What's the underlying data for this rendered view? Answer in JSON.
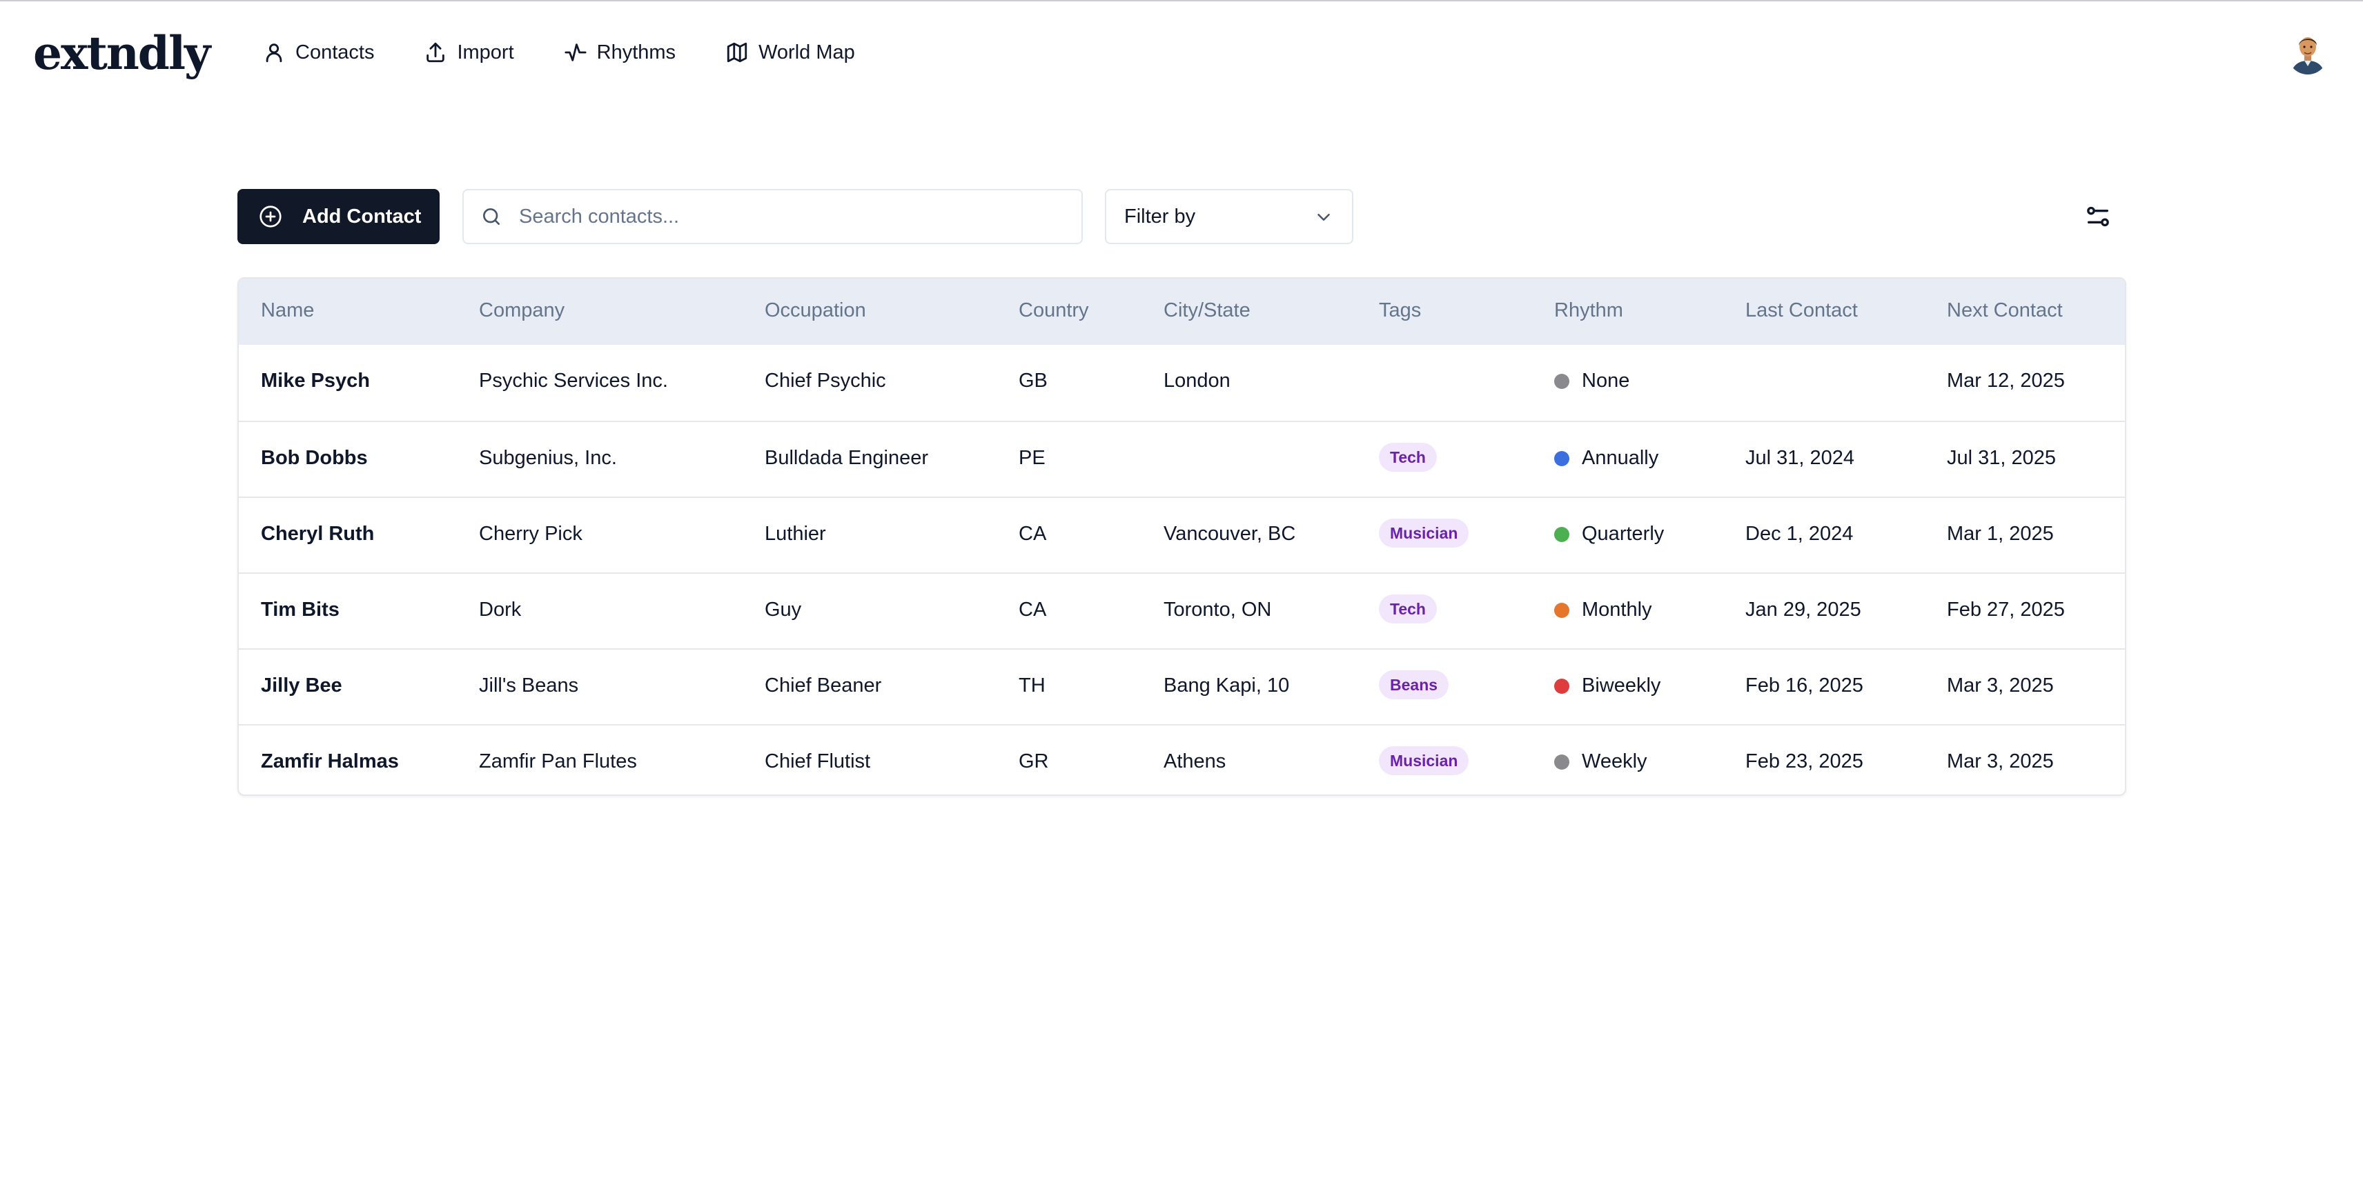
{
  "app": {
    "logo": "extndly",
    "nav": [
      {
        "label": "Contacts",
        "icon": "user-icon"
      },
      {
        "label": "Import",
        "icon": "upload-icon"
      },
      {
        "label": "Rhythms",
        "icon": "activity-icon"
      },
      {
        "label": "World Map",
        "icon": "map-icon"
      }
    ]
  },
  "toolbar": {
    "add_label": "Add Contact",
    "search_placeholder": "Search contacts...",
    "search_value": "",
    "filter_label": "Filter by"
  },
  "table": {
    "columns": [
      "Name",
      "Company",
      "Occupation",
      "Country",
      "City/State",
      "Tags",
      "Rhythm",
      "Last Contact",
      "Next Contact"
    ],
    "rows": [
      {
        "name": "Mike Psych",
        "company": "Psychic Services Inc.",
        "occupation": "Chief Psychic",
        "country": "GB",
        "city": "London",
        "tag": "",
        "rhythm": "None",
        "rhythm_color": "#8a8a8e",
        "last": "",
        "next": "Mar 12, 2025"
      },
      {
        "name": "Bob Dobbs",
        "company": "Subgenius, Inc.",
        "occupation": "Bulldada Engineer",
        "country": "PE",
        "city": "",
        "tag": "Tech",
        "rhythm": "Annually",
        "rhythm_color": "#3b6fe0",
        "last": "Jul 31, 2024",
        "next": "Jul 31, 2025"
      },
      {
        "name": "Cheryl Ruth",
        "company": "Cherry Pick",
        "occupation": "Luthier",
        "country": "CA",
        "city": "Vancouver, BC",
        "tag": "Musician",
        "rhythm": "Quarterly",
        "rhythm_color": "#4caf50",
        "last": "Dec 1, 2024",
        "next": "Mar 1, 2025"
      },
      {
        "name": "Tim Bits",
        "company": "Dork",
        "occupation": "Guy",
        "country": "CA",
        "city": "Toronto, ON",
        "tag": "Tech",
        "rhythm": "Monthly",
        "rhythm_color": "#e5762c",
        "last": "Jan 29, 2025",
        "next": "Feb 27, 2025"
      },
      {
        "name": "Jilly Bee",
        "company": "Jill's Beans",
        "occupation": "Chief Beaner",
        "country": "TH",
        "city": "Bang Kapi, 10",
        "tag": "Beans",
        "rhythm": "Biweekly",
        "rhythm_color": "#df3d3d",
        "last": "Feb 16, 2025",
        "next": "Mar 3, 2025"
      },
      {
        "name": "Zamfir Halmas",
        "company": "Zamfir Pan Flutes",
        "occupation": "Chief Flutist",
        "country": "GR",
        "city": "Athens",
        "tag": "Musician",
        "rhythm": "Weekly",
        "rhythm_color": "#8a8a8e",
        "last": "Feb 23, 2025",
        "next": "Mar 3, 2025"
      }
    ]
  }
}
